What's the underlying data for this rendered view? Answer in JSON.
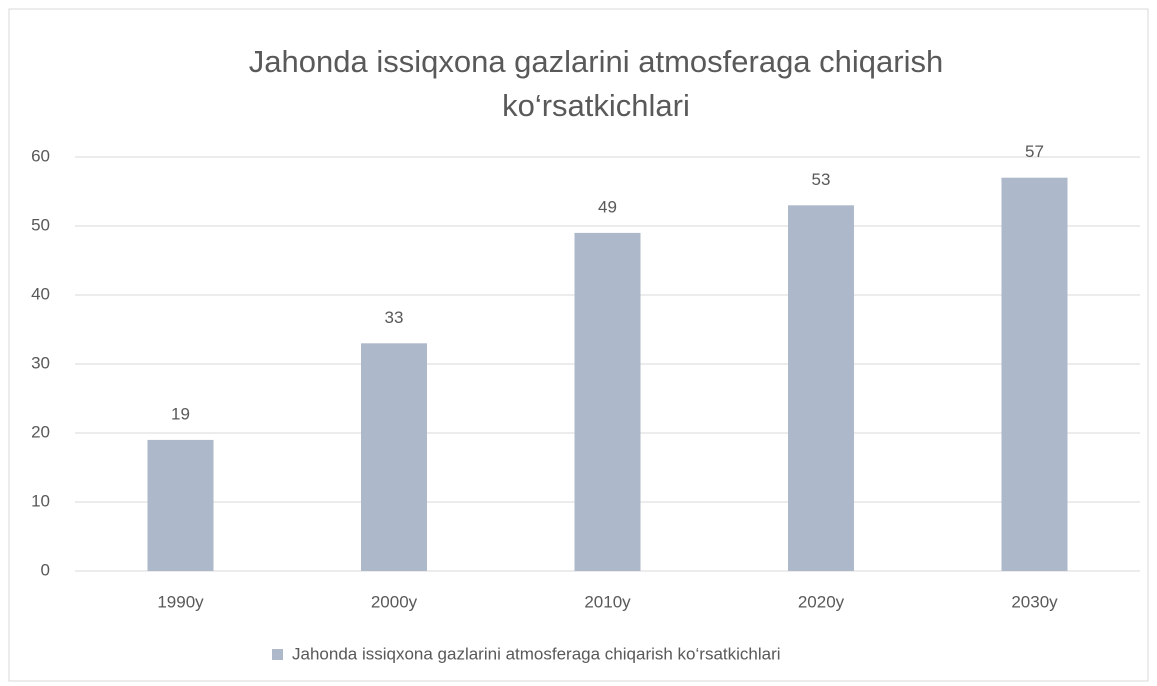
{
  "chart_data": {
    "type": "bar",
    "title": "Jahonda issiqxona gazlarini atmosferaga chiqarish ko‘rsatkichlari",
    "categories": [
      "1990y",
      "2000y",
      "2010y",
      "2020y",
      "2030y"
    ],
    "series": [
      {
        "name": "Jahonda issiqxona gazlarini atmosferaga chiqarish ko‘rsatkichlari",
        "color": "#adb9ca",
        "values": [
          19,
          33,
          49,
          53,
          57
        ]
      }
    ],
    "ylim": [
      0,
      60
    ],
    "yticks": [
      0,
      10,
      20,
      30,
      40,
      50,
      60
    ],
    "grid": true,
    "legend": "bottom"
  }
}
